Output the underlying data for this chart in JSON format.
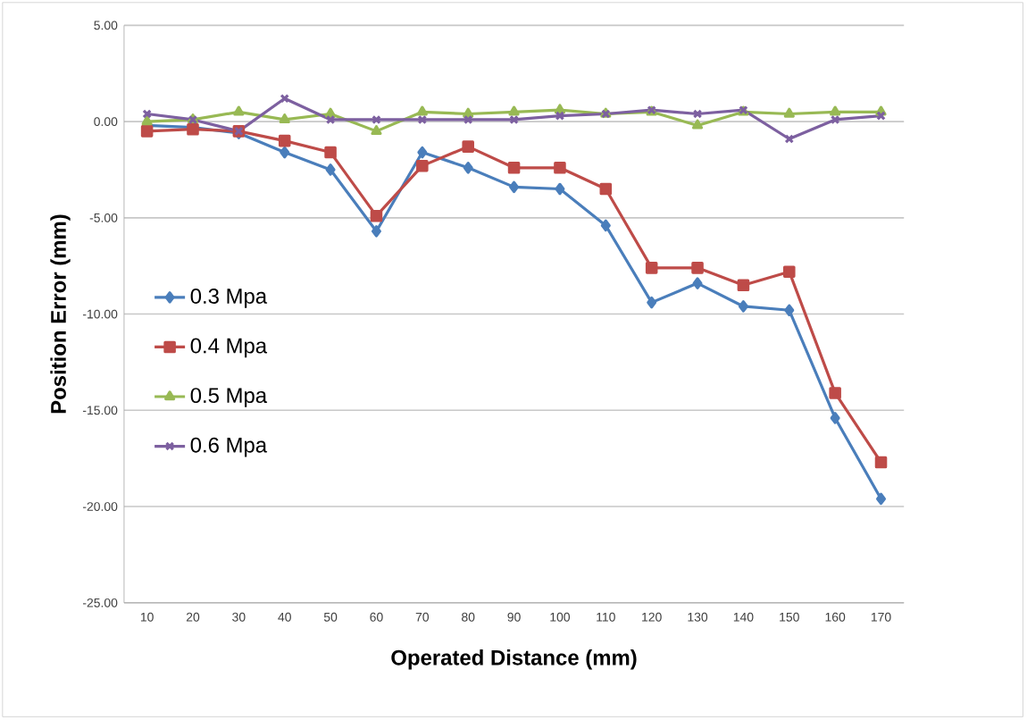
{
  "chart_data": {
    "type": "line",
    "xlabel": "Operated Distance (mm)",
    "ylabel": "Position Error (mm)",
    "categories": [
      "10",
      "20",
      "30",
      "40",
      "50",
      "60",
      "70",
      "80",
      "90",
      "100",
      "110",
      "120",
      "130",
      "140",
      "150",
      "160",
      "170"
    ],
    "ylim": [
      -25,
      5
    ],
    "yticks": [
      {
        "value": -25,
        "label": "-25.00"
      },
      {
        "value": -20,
        "label": "-20.00"
      },
      {
        "value": -15,
        "label": "-15.00"
      },
      {
        "value": -10,
        "label": "-10.00"
      },
      {
        "value": -5,
        "label": "-5.00"
      },
      {
        "value": 0,
        "label": "0.00"
      },
      {
        "value": 5,
        "label": "5.00"
      }
    ],
    "grid": "y",
    "legend": "left",
    "series": [
      {
        "name": "0.3 Mpa",
        "color": "#4a7ebb",
        "marker": "diamond",
        "values": [
          -0.2,
          -0.3,
          -0.6,
          -1.6,
          -2.5,
          -5.7,
          -1.6,
          -2.4,
          -3.4,
          -3.5,
          -5.4,
          -9.4,
          -8.4,
          -9.6,
          -9.8,
          -15.4,
          -19.6
        ]
      },
      {
        "name": "0.4 Mpa",
        "color": "#be4b48",
        "marker": "square",
        "values": [
          -0.5,
          -0.4,
          -0.5,
          -1.0,
          -1.6,
          -4.9,
          -2.3,
          -1.3,
          -2.4,
          -2.4,
          -3.5,
          -7.6,
          -7.6,
          -8.5,
          -7.8,
          -14.1,
          -17.7
        ]
      },
      {
        "name": "0.5 Mpa",
        "color": "#98b954",
        "marker": "triangle",
        "values": [
          0.0,
          0.1,
          0.5,
          0.1,
          0.4,
          -0.5,
          0.5,
          0.4,
          0.5,
          0.6,
          0.4,
          0.5,
          -0.2,
          0.5,
          0.4,
          0.5,
          0.5
        ]
      },
      {
        "name": "0.6 Mpa",
        "color": "#7d60a0",
        "marker": "cross",
        "values": [
          0.4,
          0.1,
          -0.5,
          1.2,
          0.1,
          0.1,
          0.1,
          0.1,
          0.1,
          0.3,
          0.4,
          0.6,
          0.4,
          0.6,
          -0.9,
          0.1,
          0.3
        ]
      }
    ]
  }
}
